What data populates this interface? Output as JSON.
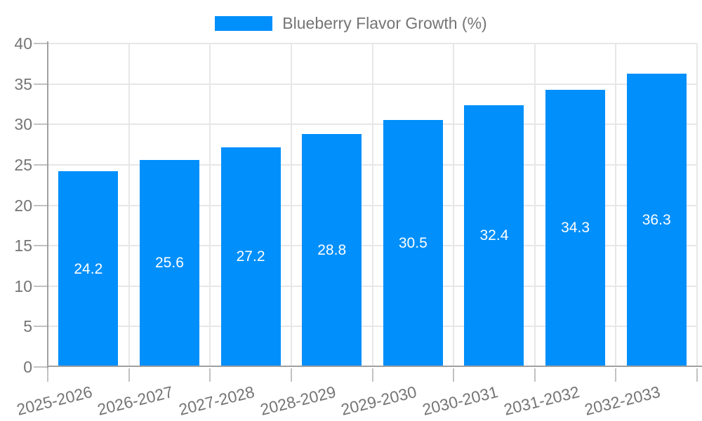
{
  "legend": {
    "position": "top",
    "label": "Blueberry Flavor Growth (%)"
  },
  "chart_data": {
    "type": "bar",
    "title": "Blueberry Flavor Growth (%)",
    "categories": [
      "2025-2026",
      "2026-2027",
      "2027-2028",
      "2028-2029",
      "2029-2030",
      "2030-2031",
      "2031-2032",
      "2032-2033"
    ],
    "series": [
      {
        "name": "Blueberry Flavor Growth (%)",
        "values": [
          24.2,
          25.6,
          27.2,
          28.8,
          30.5,
          32.4,
          34.3,
          36.3
        ]
      }
    ],
    "value_labels": [
      "24.2",
      "25.6",
      "27.2",
      "28.8",
      "30.5",
      "32.4",
      "34.3",
      "36.3"
    ],
    "xlabel": "",
    "ylabel": "",
    "ylim": [
      0,
      40
    ],
    "ytick_step": 5,
    "yticks": [
      0,
      5,
      10,
      15,
      20,
      25,
      30,
      35,
      40
    ],
    "grid": true,
    "legend_position": "top",
    "value_label_position": "inside-center",
    "colors": {
      "bar": "#008FFB",
      "grid": "#e7e7e7",
      "tick": "#c2c2c2",
      "axis_line": "#a0a0a0",
      "axis_text": "#757575",
      "value_text": "#ffffff",
      "background": "#ffffff"
    }
  }
}
